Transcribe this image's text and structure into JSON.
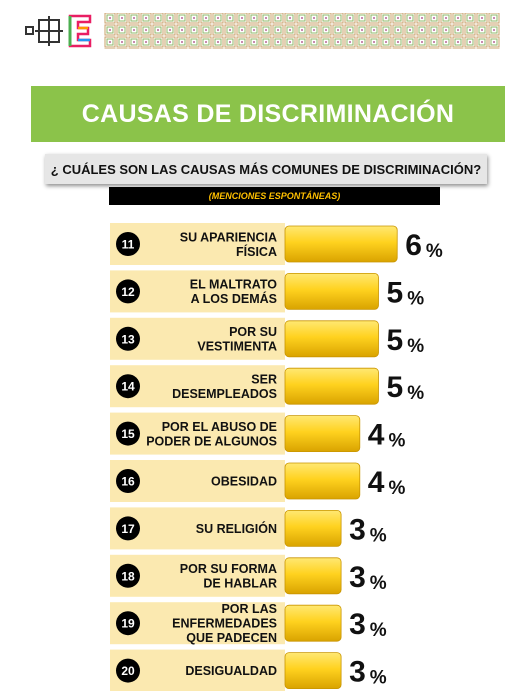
{
  "title": "CAUSAS DE DISCRIMINACIÓN",
  "question": "¿ CUÁLES SON LAS CAUSAS MÁS COMUNES DE DISCRIMINACIÓN?",
  "note": "(MENCIONES ESPONTÁNEAS)",
  "colors": {
    "banner": "#8bc34a",
    "label_bg": "#fbe9b0",
    "bar_light": "#ffd83a",
    "bar_dark": "#e0a800",
    "number_bg": "#000000",
    "note_text": "#ffc000"
  },
  "chart_data": {
    "type": "bar",
    "orientation": "horizontal",
    "numbers": [
      "11",
      "12",
      "13",
      "14",
      "15",
      "16",
      "17",
      "18",
      "19",
      "20"
    ],
    "categories": [
      [
        "SU APARIENCIA",
        "FÍSICA"
      ],
      [
        "EL MALTRATO",
        "A LOS DEMÁS"
      ],
      [
        "POR SU",
        "VESTIMENTA"
      ],
      [
        "SER",
        "DESEMPLEADOS"
      ],
      [
        "POR EL ABUSO DE",
        "PODER DE ALGUNOS"
      ],
      [
        "OBESIDAD"
      ],
      [
        "SU RELIGIÓN"
      ],
      [
        "POR SU FORMA",
        "DE HABLAR"
      ],
      [
        "POR LAS",
        "ENFERMEDADES",
        "QUE PADECEN"
      ],
      [
        "DESIGUALDAD"
      ]
    ],
    "values": [
      6,
      5,
      5,
      5,
      4,
      4,
      3,
      3,
      3,
      3
    ],
    "value_suffix": "%",
    "xlim": [
      0,
      6
    ]
  }
}
